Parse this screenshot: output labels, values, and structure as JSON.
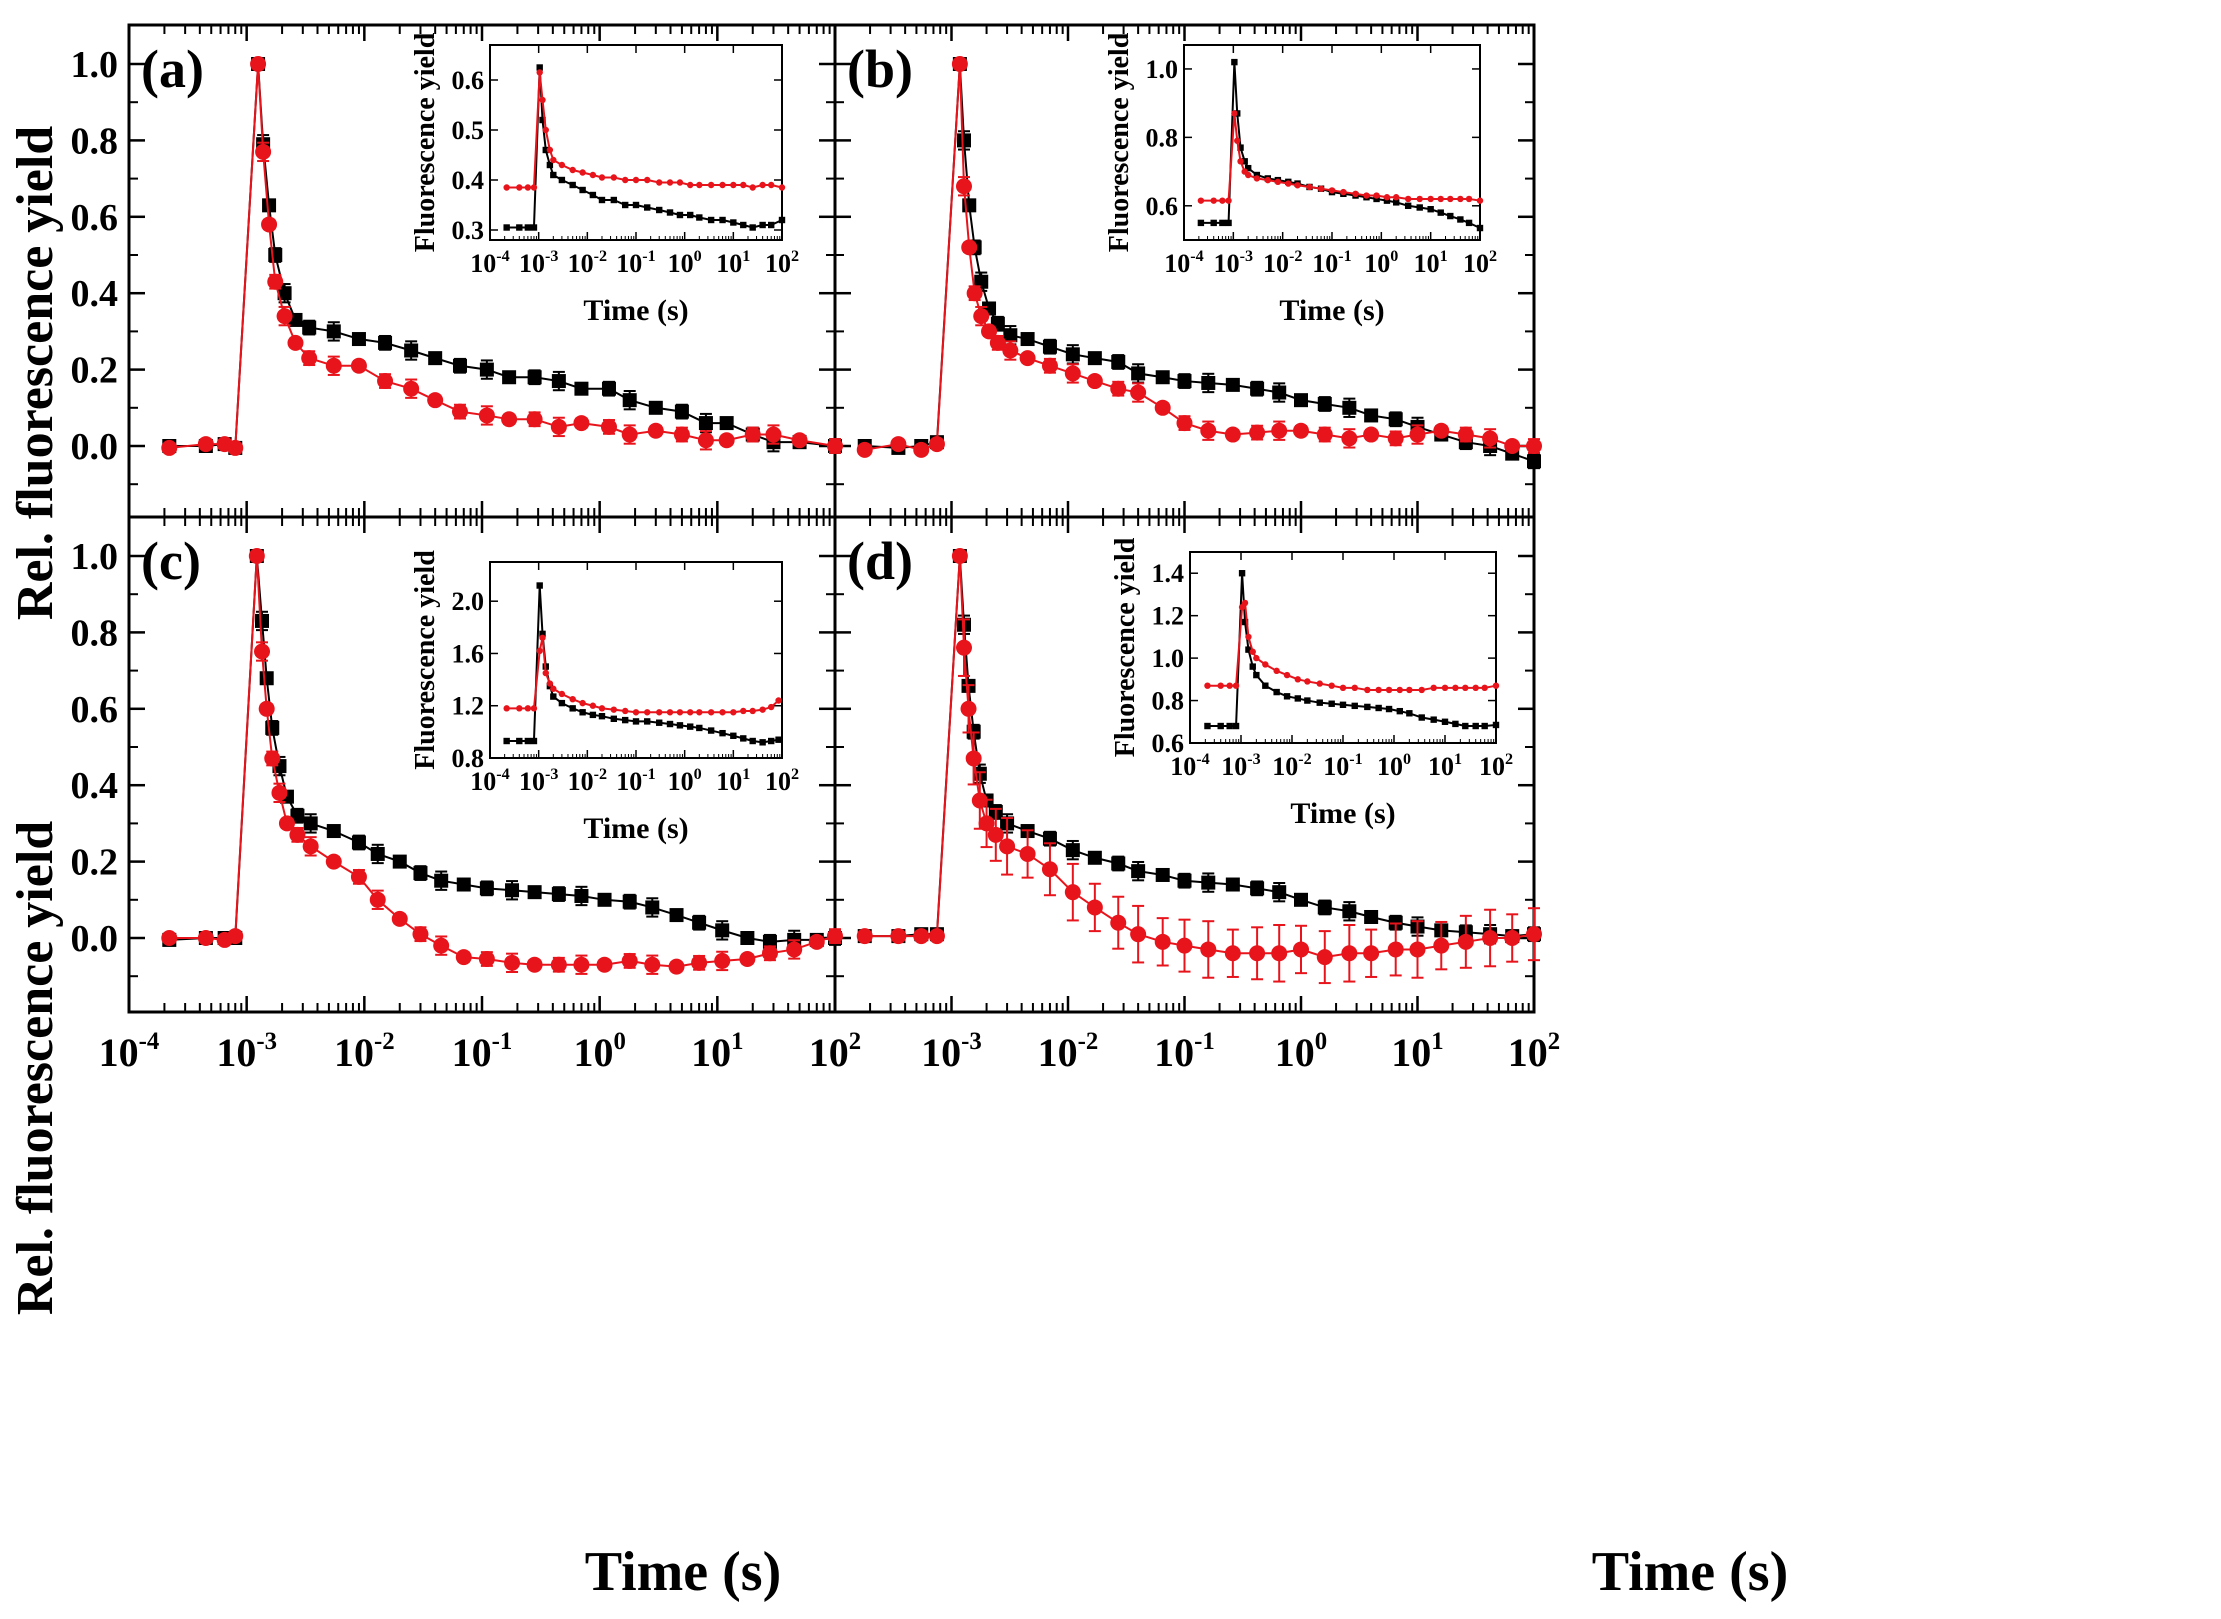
{
  "figure": {
    "y_axis_title": "Rel. fluorescence yield",
    "x_axis_title": "Time (s)",
    "inset_y_title": "Fluorescence yield",
    "inset_x_title": "Time (s)",
    "series_colors": {
      "black": "#000000",
      "red": "#e8141c"
    },
    "main_ylim": [
      -0.2,
      1.1
    ],
    "main_yticks": [
      "1.0",
      "0.8",
      "0.6",
      "0.4",
      "0.2",
      "0.0"
    ],
    "main_xlim_exp": [
      -4,
      2
    ],
    "main_xtick_labels": [
      {
        "base": "10",
        "exp": "-4"
      },
      {
        "base": "10",
        "exp": "-3"
      },
      {
        "base": "10",
        "exp": "-2"
      },
      {
        "base": "10",
        "exp": "-1"
      },
      {
        "base": "10",
        "exp": "0"
      },
      {
        "base": "10",
        "exp": "1"
      },
      {
        "base": "10",
        "exp": "2"
      }
    ]
  },
  "chart_data": [
    {
      "type": "scatter",
      "panel": "(a)",
      "title": "(a)",
      "xlabel": "Time (s)",
      "ylabel": "Rel. fluorescence yield",
      "xscale": "log",
      "x": [
        0.00022,
        0.00045,
        0.00065,
        0.0008,
        0.00125,
        0.00138,
        0.00155,
        0.00175,
        0.0021,
        0.0026,
        0.0034,
        0.0055,
        0.009,
        0.015,
        0.025,
        0.04,
        0.065,
        0.11,
        0.17,
        0.28,
        0.45,
        0.7,
        1.2,
        1.8,
        3,
        5,
        8,
        12,
        20,
        30,
        50,
        100
      ],
      "series": [
        {
          "name": "black",
          "values": [
            0.0,
            0.0,
            0.005,
            -0.005,
            1.0,
            0.79,
            0.63,
            0.5,
            0.4,
            0.33,
            0.31,
            0.3,
            0.28,
            0.27,
            0.25,
            0.23,
            0.21,
            0.2,
            0.18,
            0.18,
            0.17,
            0.15,
            0.15,
            0.12,
            0.1,
            0.09,
            0.06,
            0.06,
            0.03,
            0.01,
            0.01,
            0.0
          ]
        },
        {
          "name": "red",
          "values": [
            -0.005,
            0.005,
            0.005,
            -0.005,
            1.0,
            0.77,
            0.58,
            0.43,
            0.34,
            0.27,
            0.23,
            0.21,
            0.21,
            0.17,
            0.15,
            0.12,
            0.09,
            0.08,
            0.07,
            0.07,
            0.05,
            0.06,
            0.05,
            0.03,
            0.04,
            0.03,
            0.015,
            0.015,
            0.03,
            0.03,
            0.015,
            0.0
          ]
        }
      ],
      "ylim": [
        -0.2,
        1.1
      ],
      "inset": {
        "ylim": [
          0.28,
          0.67
        ],
        "yticks": [
          0.3,
          0.4,
          0.5,
          0.6
        ],
        "ytick_labels": [
          "0.3",
          "0.4",
          "0.5",
          "0.6"
        ],
        "x": [
          0.00022,
          0.0004,
          0.0006,
          0.0008,
          0.00105,
          0.0012,
          0.0014,
          0.0017,
          0.002,
          0.003,
          0.005,
          0.008,
          0.013,
          0.02,
          0.035,
          0.06,
          0.1,
          0.17,
          0.3,
          0.5,
          0.8,
          1.3,
          2,
          3.5,
          6,
          10,
          16,
          25,
          40,
          60,
          100
        ],
        "series": [
          {
            "name": "black",
            "values": [
              0.305,
              0.305,
              0.305,
              0.305,
              0.625,
              0.52,
              0.46,
              0.43,
              0.41,
              0.4,
              0.39,
              0.38,
              0.37,
              0.36,
              0.36,
              0.35,
              0.35,
              0.345,
              0.34,
              0.335,
              0.33,
              0.33,
              0.325,
              0.32,
              0.32,
              0.315,
              0.31,
              0.305,
              0.31,
              0.31,
              0.32
            ]
          },
          {
            "name": "red",
            "values": [
              0.385,
              0.385,
              0.385,
              0.385,
              0.615,
              0.56,
              0.5,
              0.46,
              0.44,
              0.43,
              0.42,
              0.415,
              0.41,
              0.405,
              0.405,
              0.4,
              0.4,
              0.4,
              0.395,
              0.395,
              0.395,
              0.39,
              0.39,
              0.39,
              0.39,
              0.39,
              0.39,
              0.385,
              0.39,
              0.39,
              0.385
            ]
          }
        ]
      }
    },
    {
      "type": "scatter",
      "panel": "(b)",
      "title": "(b)",
      "xlabel": "Time (s)",
      "ylabel": "Rel. fluorescence yield",
      "xscale": "log",
      "x": [
        0.00018,
        0.00035,
        0.00055,
        0.00075,
        0.00118,
        0.00128,
        0.00142,
        0.00158,
        0.0018,
        0.0021,
        0.0025,
        0.0032,
        0.0045,
        0.007,
        0.011,
        0.017,
        0.027,
        0.04,
        0.065,
        0.1,
        0.16,
        0.26,
        0.42,
        0.65,
        1,
        1.6,
        2.6,
        4,
        6.5,
        10,
        16,
        26,
        42,
        65,
        100
      ],
      "series": [
        {
          "name": "black",
          "values": [
            0.0,
            -0.005,
            0.0,
            0.01,
            1.0,
            0.8,
            0.63,
            0.52,
            0.43,
            0.36,
            0.32,
            0.29,
            0.28,
            0.26,
            0.24,
            0.23,
            0.22,
            0.19,
            0.18,
            0.17,
            0.165,
            0.16,
            0.15,
            0.14,
            0.12,
            0.11,
            0.1,
            0.08,
            0.07,
            0.05,
            0.03,
            0.01,
            0.0,
            -0.02,
            -0.04
          ]
        },
        {
          "name": "red",
          "values": [
            -0.01,
            0.005,
            -0.01,
            0.005,
            1.0,
            0.68,
            0.52,
            0.4,
            0.34,
            0.3,
            0.27,
            0.25,
            0.23,
            0.21,
            0.19,
            0.17,
            0.15,
            0.14,
            0.1,
            0.06,
            0.04,
            0.03,
            0.035,
            0.04,
            0.04,
            0.03,
            0.02,
            0.03,
            0.02,
            0.03,
            0.04,
            0.03,
            0.02,
            0.0,
            0.0
          ]
        }
      ],
      "ylim": [
        -0.2,
        1.1
      ],
      "inset": {
        "ylim": [
          0.5,
          1.07
        ],
        "yticks": [
          0.6,
          0.8,
          1.0
        ],
        "ytick_labels": [
          "0.6",
          "0.8",
          "1.0"
        ],
        "x": [
          0.00022,
          0.0004,
          0.0006,
          0.0008,
          0.00105,
          0.0012,
          0.0014,
          0.0017,
          0.002,
          0.003,
          0.005,
          0.008,
          0.013,
          0.02,
          0.035,
          0.06,
          0.1,
          0.17,
          0.3,
          0.5,
          0.8,
          1.3,
          2,
          3.5,
          6,
          10,
          16,
          25,
          40,
          60,
          100
        ],
        "series": [
          {
            "name": "black",
            "values": [
              0.55,
              0.55,
              0.55,
              0.55,
              1.02,
              0.87,
              0.77,
              0.73,
              0.71,
              0.69,
              0.68,
              0.675,
              0.67,
              0.665,
              0.655,
              0.65,
              0.64,
              0.635,
              0.63,
              0.625,
              0.62,
              0.615,
              0.61,
              0.6,
              0.595,
              0.59,
              0.58,
              0.57,
              0.56,
              0.55,
              0.535
            ]
          },
          {
            "name": "red",
            "values": [
              0.615,
              0.615,
              0.615,
              0.615,
              0.87,
              0.79,
              0.73,
              0.7,
              0.69,
              0.68,
              0.675,
              0.67,
              0.665,
              0.66,
              0.655,
              0.65,
              0.645,
              0.64,
              0.635,
              0.63,
              0.63,
              0.625,
              0.625,
              0.62,
              0.62,
              0.62,
              0.62,
              0.62,
              0.62,
              0.62,
              0.615
            ]
          }
        ]
      }
    },
    {
      "type": "scatter",
      "panel": "(c)",
      "title": "(c)",
      "xlabel": "Time (s)",
      "ylabel": "Rel. fluorescence yield",
      "xscale": "log",
      "x": [
        0.00022,
        0.00045,
        0.00065,
        0.0008,
        0.00122,
        0.00135,
        0.00148,
        0.00165,
        0.0019,
        0.0022,
        0.0027,
        0.0035,
        0.0055,
        0.009,
        0.013,
        0.02,
        0.03,
        0.045,
        0.07,
        0.11,
        0.18,
        0.28,
        0.45,
        0.7,
        1.1,
        1.8,
        2.8,
        4.5,
        7,
        11,
        18,
        28,
        45,
        70,
        100
      ],
      "series": [
        {
          "name": "black",
          "values": [
            -0.005,
            0.0,
            0.0,
            0.0,
            1.0,
            0.83,
            0.68,
            0.55,
            0.45,
            0.37,
            0.32,
            0.3,
            0.28,
            0.25,
            0.22,
            0.2,
            0.17,
            0.15,
            0.14,
            0.13,
            0.125,
            0.12,
            0.115,
            0.11,
            0.1,
            0.095,
            0.08,
            0.06,
            0.04,
            0.02,
            0.0,
            -0.01,
            -0.005,
            -0.005,
            0.0
          ]
        },
        {
          "name": "red",
          "values": [
            0.0,
            0.0,
            -0.005,
            0.005,
            1.0,
            0.75,
            0.6,
            0.47,
            0.38,
            0.3,
            0.27,
            0.24,
            0.2,
            0.16,
            0.1,
            0.05,
            0.01,
            -0.02,
            -0.05,
            -0.055,
            -0.065,
            -0.07,
            -0.07,
            -0.07,
            -0.07,
            -0.06,
            -0.07,
            -0.075,
            -0.065,
            -0.06,
            -0.055,
            -0.04,
            -0.03,
            -0.01,
            0.005
          ]
        }
      ],
      "ylim": [
        -0.2,
        1.1
      ],
      "inset": {
        "ylim": [
          0.8,
          2.3
        ],
        "yticks": [
          0.8,
          1.2,
          1.6,
          2.0
        ],
        "ytick_labels": [
          "0.8",
          "1.2",
          "1.6",
          "2.0"
        ],
        "x": [
          0.00022,
          0.0004,
          0.0006,
          0.0008,
          0.00105,
          0.0012,
          0.0014,
          0.0017,
          0.002,
          0.003,
          0.005,
          0.008,
          0.013,
          0.02,
          0.035,
          0.06,
          0.1,
          0.17,
          0.3,
          0.5,
          0.8,
          1.3,
          2,
          3.5,
          6,
          10,
          16,
          25,
          40,
          60,
          85
        ],
        "series": [
          {
            "name": "black",
            "values": [
              0.93,
              0.93,
              0.93,
              0.93,
              2.12,
              1.75,
              1.5,
              1.35,
              1.27,
              1.22,
              1.18,
              1.15,
              1.13,
              1.12,
              1.1,
              1.09,
              1.08,
              1.08,
              1.07,
              1.06,
              1.05,
              1.04,
              1.03,
              1.01,
              0.99,
              0.97,
              0.95,
              0.93,
              0.92,
              0.93,
              0.94
            ]
          },
          {
            "name": "red",
            "values": [
              1.18,
              1.18,
              1.18,
              1.18,
              1.62,
              1.72,
              1.45,
              1.37,
              1.33,
              1.29,
              1.25,
              1.22,
              1.2,
              1.18,
              1.17,
              1.16,
              1.15,
              1.15,
              1.15,
              1.15,
              1.15,
              1.15,
              1.15,
              1.15,
              1.15,
              1.15,
              1.16,
              1.16,
              1.17,
              1.19,
              1.24
            ]
          }
        ]
      }
    },
    {
      "type": "scatter",
      "panel": "(d)",
      "title": "(d)",
      "xlabel": "Time (s)",
      "ylabel": "Rel. fluorescence yield",
      "xscale": "log",
      "x": [
        0.00018,
        0.00035,
        0.00055,
        0.00075,
        0.00118,
        0.00128,
        0.0014,
        0.00155,
        0.00175,
        0.002,
        0.0024,
        0.003,
        0.0045,
        0.007,
        0.011,
        0.017,
        0.027,
        0.04,
        0.065,
        0.1,
        0.16,
        0.26,
        0.42,
        0.65,
        1,
        1.6,
        2.6,
        4,
        6.5,
        10,
        16,
        26,
        42,
        65,
        100
      ],
      "series": [
        {
          "name": "black",
          "values": [
            0.005,
            0.005,
            0.01,
            0.01,
            1.0,
            0.82,
            0.66,
            0.54,
            0.43,
            0.36,
            0.33,
            0.3,
            0.28,
            0.26,
            0.23,
            0.21,
            0.195,
            0.175,
            0.165,
            0.15,
            0.145,
            0.14,
            0.13,
            0.12,
            0.1,
            0.08,
            0.07,
            0.055,
            0.04,
            0.03,
            0.02,
            0.015,
            0.01,
            0.005,
            0.01
          ]
        },
        {
          "name": "red",
          "values": [
            0.005,
            0.005,
            0.005,
            0.005,
            1.0,
            0.76,
            0.6,
            0.47,
            0.36,
            0.3,
            0.27,
            0.24,
            0.22,
            0.18,
            0.12,
            0.08,
            0.04,
            0.01,
            -0.01,
            -0.02,
            -0.03,
            -0.04,
            -0.04,
            -0.04,
            -0.03,
            -0.05,
            -0.04,
            -0.04,
            -0.03,
            -0.03,
            -0.02,
            -0.01,
            0.0,
            0.0,
            0.01
          ]
        }
      ],
      "ylim": [
        -0.2,
        1.1
      ],
      "inset": {
        "ylim": [
          0.6,
          1.5
        ],
        "yticks": [
          0.6,
          0.8,
          1.0,
          1.2,
          1.4
        ],
        "ytick_labels": [
          "0.6",
          "0.8",
          "1.0",
          "1.2",
          "1.4"
        ],
        "x": [
          0.00022,
          0.0004,
          0.0006,
          0.0008,
          0.00105,
          0.0012,
          0.0014,
          0.0017,
          0.002,
          0.003,
          0.005,
          0.008,
          0.013,
          0.02,
          0.035,
          0.06,
          0.1,
          0.17,
          0.3,
          0.5,
          0.8,
          1.3,
          2,
          3.5,
          6,
          10,
          16,
          25,
          40,
          60,
          100
        ],
        "series": [
          {
            "name": "black",
            "values": [
              0.68,
              0.68,
              0.68,
              0.68,
              1.4,
              1.17,
              1.04,
              0.96,
              0.92,
              0.87,
              0.84,
              0.82,
              0.81,
              0.8,
              0.79,
              0.785,
              0.78,
              0.775,
              0.77,
              0.765,
              0.76,
              0.75,
              0.74,
              0.72,
              0.71,
              0.7,
              0.69,
              0.68,
              0.68,
              0.68,
              0.685
            ]
          },
          {
            "name": "red",
            "values": [
              0.87,
              0.87,
              0.87,
              0.87,
              1.24,
              1.26,
              1.1,
              1.03,
              1.0,
              0.97,
              0.94,
              0.92,
              0.9,
              0.89,
              0.88,
              0.87,
              0.86,
              0.86,
              0.85,
              0.85,
              0.85,
              0.85,
              0.85,
              0.85,
              0.86,
              0.86,
              0.86,
              0.86,
              0.86,
              0.86,
              0.87
            ]
          }
        ]
      }
    }
  ]
}
